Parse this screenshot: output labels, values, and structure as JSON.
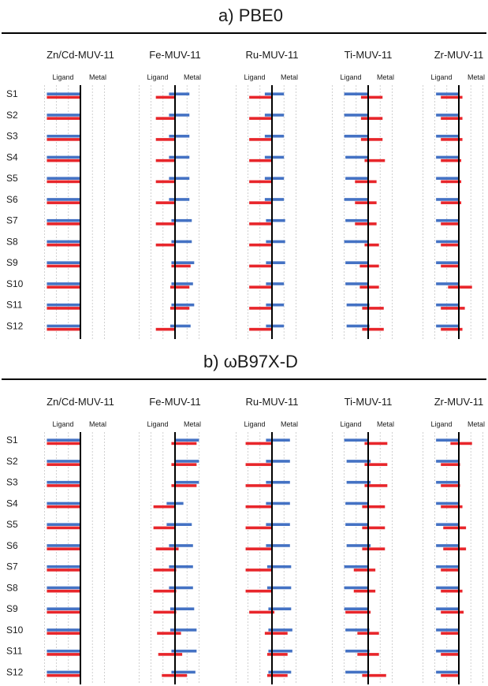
{
  "chart_data": [
    {
      "type": "bar",
      "orientation": "horizontal",
      "title": "a) PBE0",
      "rows": [
        "S1",
        "S2",
        "S3",
        "S4",
        "S5",
        "S6",
        "S7",
        "S8",
        "S9",
        "S10",
        "S11",
        "S12"
      ],
      "side_labels": {
        "left": "Ligand",
        "right": "Metal"
      },
      "series_colors": {
        "blue": "#4472c4",
        "red": "#e8262b"
      },
      "xlim": [
        -3,
        2
      ],
      "panels": [
        {
          "title": "Zn/Cd-MUV-11",
          "blue": [
            [
              -2.8,
              0
            ],
            [
              -2.8,
              0
            ],
            [
              -2.8,
              0
            ],
            [
              -2.8,
              0
            ],
            [
              -2.8,
              0
            ],
            [
              -2.8,
              0
            ],
            [
              -2.8,
              0
            ],
            [
              -2.8,
              0
            ],
            [
              -2.8,
              0
            ],
            [
              -2.8,
              0
            ],
            [
              -2.8,
              0
            ],
            [
              -2.8,
              0
            ]
          ],
          "red": [
            [
              -2.8,
              0
            ],
            [
              -2.8,
              0
            ],
            [
              -2.8,
              0
            ],
            [
              -2.8,
              0
            ],
            [
              -2.8,
              0
            ],
            [
              -2.8,
              0
            ],
            [
              -2.8,
              0
            ],
            [
              -2.8,
              0
            ],
            [
              -2.8,
              0
            ],
            [
              -2.8,
              0
            ],
            [
              -2.8,
              0
            ],
            [
              -2.8,
              0
            ]
          ]
        },
        {
          "title": "Fe-MUV-11",
          "blue": [
            [
              -0.5,
              1.2
            ],
            [
              -0.5,
              1.2
            ],
            [
              -0.5,
              1.2
            ],
            [
              -0.5,
              1.2
            ],
            [
              -0.5,
              1.2
            ],
            [
              -0.5,
              1.2
            ],
            [
              -0.3,
              1.4
            ],
            [
              -0.3,
              1.4
            ],
            [
              -0.3,
              1.6
            ],
            [
              -0.3,
              1.5
            ],
            [
              -0.3,
              1.6
            ],
            [
              -0.4,
              1.3
            ]
          ],
          "red": [
            [
              -1.6,
              0
            ],
            [
              -1.6,
              0
            ],
            [
              -1.6,
              0
            ],
            [
              -1.6,
              0
            ],
            [
              -1.6,
              0
            ],
            [
              -1.6,
              0
            ],
            [
              -1.6,
              0
            ],
            [
              -1.6,
              0
            ],
            [
              -0.3,
              1.3
            ],
            [
              -0.4,
              1.2
            ],
            [
              -0.4,
              1.2
            ],
            [
              -1.6,
              0
            ]
          ]
        },
        {
          "title": "Ru-MUV-11",
          "blue": [
            [
              -0.6,
              1.0
            ],
            [
              -0.6,
              1.0
            ],
            [
              -0.6,
              1.0
            ],
            [
              -0.6,
              1.0
            ],
            [
              -0.6,
              1.0
            ],
            [
              -0.6,
              1.0
            ],
            [
              -0.5,
              1.1
            ],
            [
              -0.5,
              1.1
            ],
            [
              -0.5,
              1.1
            ],
            [
              -0.5,
              1.0
            ],
            [
              -0.5,
              1.0
            ],
            [
              -0.5,
              1.0
            ]
          ],
          "red": [
            [
              -1.9,
              0
            ],
            [
              -1.9,
              0.05
            ],
            [
              -1.9,
              0.05
            ],
            [
              -1.9,
              0
            ],
            [
              -1.9,
              0
            ],
            [
              -1.9,
              0
            ],
            [
              -1.9,
              0
            ],
            [
              -1.9,
              0
            ],
            [
              -1.9,
              0
            ],
            [
              -1.9,
              0
            ],
            [
              -1.9,
              0
            ],
            [
              -1.9,
              0
            ]
          ]
        },
        {
          "title": "Ti-MUV-11",
          "blue": [
            [
              -2.0,
              0
            ],
            [
              -2.0,
              0
            ],
            [
              -2.0,
              0
            ],
            [
              -1.9,
              0
            ],
            [
              -1.9,
              0
            ],
            [
              -2.0,
              0
            ],
            [
              -1.9,
              0
            ],
            [
              -2.0,
              0
            ],
            [
              -1.9,
              0
            ],
            [
              -1.9,
              0
            ],
            [
              -1.8,
              0.1
            ],
            [
              -1.8,
              0.1
            ]
          ],
          "red": [
            [
              -0.6,
              1.2
            ],
            [
              -0.6,
              1.2
            ],
            [
              -0.6,
              1.2
            ],
            [
              -0.3,
              1.4
            ],
            [
              -1.1,
              0.7
            ],
            [
              -1.1,
              0.7
            ],
            [
              -1.1,
              0.7
            ],
            [
              -0.3,
              0.9
            ],
            [
              -0.7,
              0.9
            ],
            [
              -0.7,
              0.9
            ],
            [
              -0.5,
              1.3
            ],
            [
              -0.5,
              1.3
            ]
          ]
        },
        {
          "title": "Zr-MUV-11",
          "blue": [
            [
              -1.9,
              0
            ],
            [
              -1.9,
              0
            ],
            [
              -1.9,
              0
            ],
            [
              -1.9,
              0
            ],
            [
              -1.9,
              0
            ],
            [
              -1.9,
              0
            ],
            [
              -1.9,
              0
            ],
            [
              -1.9,
              0
            ],
            [
              -1.9,
              0
            ],
            [
              -1.9,
              0
            ],
            [
              -1.9,
              0
            ],
            [
              -1.9,
              0
            ]
          ],
          "red": [
            [
              -1.5,
              0.3
            ],
            [
              -1.5,
              0.3
            ],
            [
              -1.5,
              0.3
            ],
            [
              -1.5,
              0.2
            ],
            [
              -1.5,
              0.2
            ],
            [
              -1.5,
              0.2
            ],
            [
              -1.5,
              0
            ],
            [
              -1.5,
              0
            ],
            [
              -1.5,
              0
            ],
            [
              -0.9,
              1.1
            ],
            [
              -1.5,
              0.5
            ],
            [
              -1.5,
              0.3
            ]
          ]
        }
      ]
    },
    {
      "type": "bar",
      "orientation": "horizontal",
      "title": "b) ωB97X-D",
      "rows": [
        "S1",
        "S2",
        "S3",
        "S4",
        "S5",
        "S6",
        "S7",
        "S8",
        "S9",
        "S10",
        "S11",
        "S12"
      ],
      "side_labels": {
        "left": "Ligand",
        "right": "Metal"
      },
      "series_colors": {
        "blue": "#4472c4",
        "red": "#e8262b"
      },
      "xlim": [
        -3,
        2
      ],
      "panels": [
        {
          "title": "Zn/Cd-MUV-11",
          "blue": [
            [
              -2.8,
              0
            ],
            [
              -2.8,
              0
            ],
            [
              -2.8,
              0
            ],
            [
              -2.8,
              0
            ],
            [
              -2.8,
              0
            ],
            [
              -2.8,
              0
            ],
            [
              -2.8,
              0
            ],
            [
              -2.8,
              0
            ],
            [
              -2.8,
              0
            ],
            [
              -2.8,
              0
            ],
            [
              -2.8,
              0
            ],
            [
              -2.8,
              0
            ]
          ],
          "red": [
            [
              -2.8,
              0
            ],
            [
              -2.8,
              0
            ],
            [
              -2.8,
              0
            ],
            [
              -2.8,
              0
            ],
            [
              -2.8,
              0
            ],
            [
              -2.8,
              0
            ],
            [
              -2.8,
              0
            ],
            [
              -2.8,
              0
            ],
            [
              -2.8,
              0
            ],
            [
              -2.8,
              0
            ],
            [
              -2.8,
              0
            ],
            [
              -2.8,
              0
            ]
          ]
        },
        {
          "title": "Fe-MUV-11",
          "blue": [
            [
              0,
              2.0
            ],
            [
              0,
              2.0
            ],
            [
              0,
              2.0
            ],
            [
              -0.7,
              0.7
            ],
            [
              -0.7,
              1.4
            ],
            [
              -0.5,
              1.5
            ],
            [
              -0.5,
              1.5
            ],
            [
              -0.5,
              1.5
            ],
            [
              -0.4,
              1.6
            ],
            [
              -0.4,
              1.8
            ],
            [
              -0.3,
              1.8
            ],
            [
              -0.3,
              1.7
            ]
          ],
          "red": [
            [
              -0.3,
              1.8
            ],
            [
              -0.3,
              1.8
            ],
            [
              -0.3,
              1.8
            ],
            [
              -1.8,
              0
            ],
            [
              -1.8,
              0
            ],
            [
              -1.6,
              0.3
            ],
            [
              -1.8,
              0.1
            ],
            [
              -1.8,
              0.1
            ],
            [
              -1.8,
              0.1
            ],
            [
              -1.5,
              0.5
            ],
            [
              -1.4,
              0.6
            ],
            [
              -1.1,
              1.0
            ]
          ]
        },
        {
          "title": "Ru-MUV-11",
          "blue": [
            [
              -0.5,
              1.5
            ],
            [
              -0.5,
              1.5
            ],
            [
              -0.5,
              1.5
            ],
            [
              -0.5,
              1.5
            ],
            [
              -0.5,
              1.5
            ],
            [
              -0.5,
              1.5
            ],
            [
              -0.4,
              1.6
            ],
            [
              -0.4,
              1.6
            ],
            [
              -0.3,
              1.6
            ],
            [
              -0.3,
              1.7
            ],
            [
              -0.3,
              1.7
            ],
            [
              -0.3,
              1.6
            ]
          ],
          "red": [
            [
              -2.2,
              0
            ],
            [
              -2.2,
              0
            ],
            [
              -2.2,
              0
            ],
            [
              -2.2,
              0
            ],
            [
              -2.2,
              0
            ],
            [
              -2.2,
              0
            ],
            [
              -2.2,
              0
            ],
            [
              -2.2,
              0
            ],
            [
              -1.9,
              0.2
            ],
            [
              -0.6,
              1.3
            ],
            [
              -0.4,
              1.3
            ],
            [
              -0.4,
              1.3
            ]
          ]
        },
        {
          "title": "Ti-MUV-11",
          "blue": [
            [
              -2.0,
              0
            ],
            [
              -1.8,
              0.2
            ],
            [
              -1.8,
              0.2
            ],
            [
              -1.9,
              0
            ],
            [
              -1.9,
              0
            ],
            [
              -1.8,
              0.2
            ],
            [
              -2.0,
              0
            ],
            [
              -2.0,
              0
            ],
            [
              -2.0,
              0
            ],
            [
              -1.9,
              0.1
            ],
            [
              -1.9,
              0.1
            ],
            [
              -1.9,
              0.1
            ]
          ],
          "red": [
            [
              -0.3,
              1.6
            ],
            [
              -0.3,
              1.6
            ],
            [
              -0.3,
              1.6
            ],
            [
              -0.5,
              1.4
            ],
            [
              -0.5,
              1.4
            ],
            [
              -0.5,
              1.4
            ],
            [
              -1.2,
              0.6
            ],
            [
              -1.2,
              0.6
            ],
            [
              -1.9,
              0.2
            ],
            [
              -0.9,
              0.9
            ],
            [
              -0.9,
              0.9
            ],
            [
              -0.5,
              1.5
            ]
          ]
        },
        {
          "title": "Zr-MUV-11",
          "blue": [
            [
              -1.9,
              0
            ],
            [
              -1.9,
              0
            ],
            [
              -1.9,
              0
            ],
            [
              -1.9,
              0
            ],
            [
              -1.9,
              0
            ],
            [
              -1.9,
              0
            ],
            [
              -1.9,
              0
            ],
            [
              -1.9,
              0
            ],
            [
              -1.9,
              0
            ],
            [
              -1.9,
              0
            ],
            [
              -1.9,
              0
            ],
            [
              -1.9,
              0
            ]
          ],
          "red": [
            [
              -0.7,
              1.1
            ],
            [
              -1.5,
              0.1
            ],
            [
              -1.5,
              0.1
            ],
            [
              -1.5,
              0.3
            ],
            [
              -1.3,
              0.6
            ],
            [
              -1.3,
              0.6
            ],
            [
              -1.5,
              0
            ],
            [
              -1.5,
              0.3
            ],
            [
              -1.5,
              0.4
            ],
            [
              -1.5,
              0
            ],
            [
              -1.5,
              0
            ],
            [
              -1.5,
              0
            ]
          ]
        }
      ]
    }
  ]
}
